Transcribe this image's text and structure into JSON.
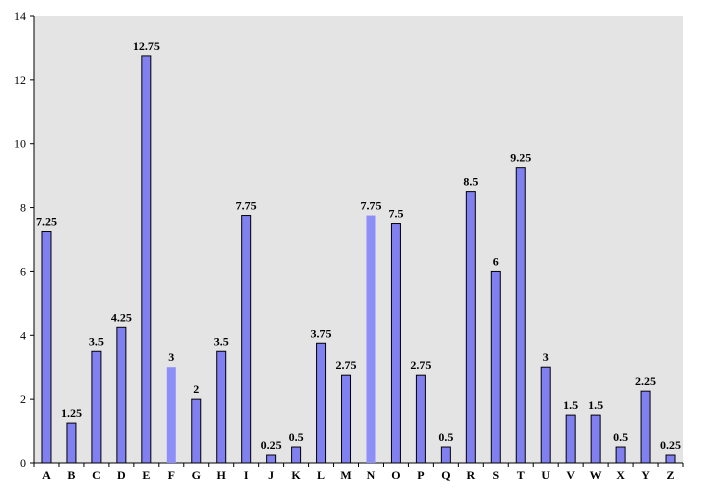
{
  "chart_data": {
    "type": "bar",
    "title": "",
    "xlabel": "",
    "ylabel": "",
    "ylim": [
      0,
      14
    ],
    "yticks": [
      0,
      2,
      4,
      6,
      8,
      10,
      12,
      14
    ],
    "grid": false,
    "legend": "none",
    "categories": [
      "A",
      "B",
      "C",
      "D",
      "E",
      "F",
      "G",
      "H",
      "I",
      "J",
      "K",
      "L",
      "M",
      "N",
      "O",
      "P",
      "Q",
      "R",
      "S",
      "T",
      "U",
      "V",
      "W",
      "X",
      "Y",
      "Z"
    ],
    "values": [
      7.25,
      1.25,
      3.5,
      4.25,
      12.75,
      3,
      2,
      3.5,
      7.75,
      0.25,
      0.5,
      3.75,
      2.75,
      7.75,
      7.5,
      2.75,
      0.5,
      8.5,
      6,
      9.25,
      3,
      1.5,
      1.5,
      0.5,
      2.25,
      0.25
    ],
    "data_labels": [
      "7.25",
      "1.25",
      "3.5",
      "4.25",
      "12.75",
      "3",
      "2",
      "3.5",
      "7.75",
      "0.25",
      "0.5",
      "3.75",
      "2.75",
      "7.75",
      "7.5",
      "2.75",
      "0.5",
      "8.5",
      "6",
      "9.25",
      "3",
      "1.5",
      "1.5",
      "0.5",
      "2.25",
      "0.25"
    ],
    "colors": {
      "plot_background": "#e4e4e4",
      "bar_fill": "#8080f0",
      "bar_fill_highlight": "#8e8ef8",
      "bar_stroke": "#000000"
    },
    "highlighted_categories": [
      "F",
      "N"
    ]
  }
}
